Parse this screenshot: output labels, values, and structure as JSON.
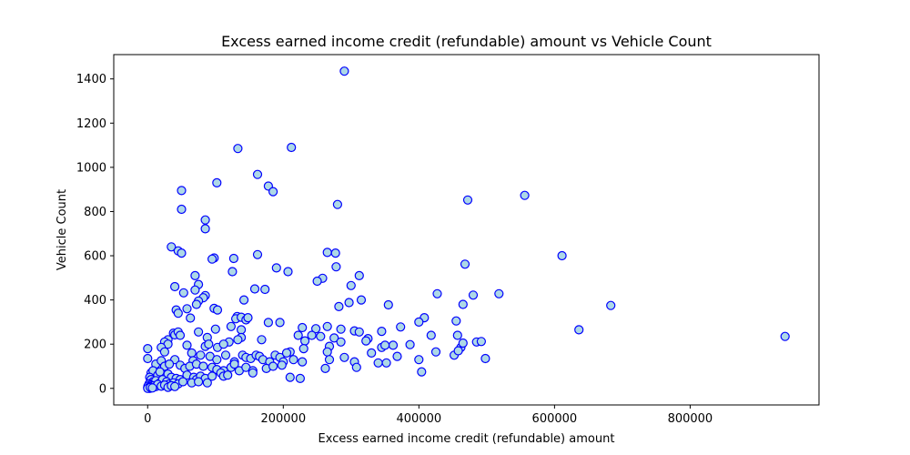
{
  "chart_data": {
    "type": "scatter",
    "title": "Excess earned income credit (refundable) amount vs Vehicle Count",
    "xlabel": "Excess earned income credit (refundable) amount",
    "ylabel": "Vehicle Count",
    "xlim": [
      -50000,
      990000
    ],
    "ylim": [
      -75,
      1510
    ],
    "xticks": [
      0,
      200000,
      400000,
      600000,
      800000
    ],
    "xtick_labels": [
      "0",
      "200000",
      "400000",
      "600000",
      "800000"
    ],
    "yticks": [
      0,
      200,
      400,
      600,
      800,
      1000,
      1200,
      1400
    ],
    "ytick_labels": [
      "0",
      "200",
      "400",
      "600",
      "800",
      "1000",
      "1200",
      "1400"
    ],
    "grid": false,
    "marker": {
      "fill": "#add8e6",
      "edge": "#0000ff"
    },
    "points": [
      [
        290000,
        1435
      ],
      [
        133000,
        1085
      ],
      [
        212000,
        1090
      ],
      [
        162000,
        968
      ],
      [
        102000,
        930
      ],
      [
        178000,
        915
      ],
      [
        185000,
        890
      ],
      [
        50000,
        895
      ],
      [
        280000,
        832
      ],
      [
        50000,
        810
      ],
      [
        472000,
        852
      ],
      [
        556000,
        873
      ],
      [
        85000,
        762
      ],
      [
        85000,
        722
      ],
      [
        611000,
        600
      ],
      [
        35000,
        640
      ],
      [
        45000,
        622
      ],
      [
        50000,
        612
      ],
      [
        98000,
        590
      ],
      [
        95000,
        585
      ],
      [
        127000,
        588
      ],
      [
        162000,
        605
      ],
      [
        265000,
        615
      ],
      [
        277000,
        612
      ],
      [
        190000,
        545
      ],
      [
        207000,
        528
      ],
      [
        125000,
        528
      ],
      [
        278000,
        550
      ],
      [
        70000,
        510
      ],
      [
        75000,
        470
      ],
      [
        258000,
        498
      ],
      [
        250000,
        485
      ],
      [
        312000,
        510
      ],
      [
        468000,
        562
      ],
      [
        40000,
        460
      ],
      [
        53000,
        432
      ],
      [
        70000,
        445
      ],
      [
        85000,
        420
      ],
      [
        82000,
        410
      ],
      [
        75000,
        395
      ],
      [
        72000,
        380
      ],
      [
        158000,
        450
      ],
      [
        173000,
        448
      ],
      [
        300000,
        465
      ],
      [
        142000,
        400
      ],
      [
        427000,
        428
      ],
      [
        518000,
        428
      ],
      [
        480000,
        422
      ],
      [
        42000,
        355
      ],
      [
        45000,
        340
      ],
      [
        58000,
        360
      ],
      [
        98000,
        362
      ],
      [
        103000,
        355
      ],
      [
        282000,
        370
      ],
      [
        297000,
        388
      ],
      [
        315000,
        400
      ],
      [
        355000,
        378
      ],
      [
        465000,
        380
      ],
      [
        683000,
        375
      ],
      [
        132000,
        325
      ],
      [
        130000,
        315
      ],
      [
        138000,
        322
      ],
      [
        145000,
        310
      ],
      [
        148000,
        320
      ],
      [
        63000,
        318
      ],
      [
        178000,
        298
      ],
      [
        195000,
        298
      ],
      [
        408000,
        320
      ],
      [
        400000,
        300
      ],
      [
        455000,
        305
      ],
      [
        373000,
        278
      ],
      [
        636000,
        265
      ],
      [
        38000,
        250
      ],
      [
        40000,
        242
      ],
      [
        45000,
        255
      ],
      [
        30000,
        220
      ],
      [
        48000,
        240
      ],
      [
        75000,
        255
      ],
      [
        88000,
        230
      ],
      [
        100000,
        268
      ],
      [
        123000,
        280
      ],
      [
        138000,
        265
      ],
      [
        138000,
        230
      ],
      [
        133000,
        220
      ],
      [
        120000,
        210
      ],
      [
        228000,
        275
      ],
      [
        248000,
        270
      ],
      [
        265000,
        280
      ],
      [
        285000,
        268
      ],
      [
        305000,
        260
      ],
      [
        222000,
        240
      ],
      [
        242000,
        240
      ],
      [
        255000,
        235
      ],
      [
        232000,
        215
      ],
      [
        275000,
        228
      ],
      [
        312000,
        255
      ],
      [
        325000,
        225
      ],
      [
        345000,
        258
      ],
      [
        418000,
        240
      ],
      [
        457000,
        240
      ],
      [
        25000,
        210
      ],
      [
        30000,
        200
      ],
      [
        58000,
        195
      ],
      [
        85000,
        190
      ],
      [
        90000,
        200
      ],
      [
        103000,
        185
      ],
      [
        112000,
        200
      ],
      [
        168000,
        220
      ],
      [
        210000,
        165
      ],
      [
        230000,
        180
      ],
      [
        268000,
        190
      ],
      [
        285000,
        210
      ],
      [
        322000,
        215
      ],
      [
        362000,
        195
      ],
      [
        387000,
        198
      ],
      [
        330000,
        160
      ],
      [
        345000,
        185
      ],
      [
        350000,
        195
      ],
      [
        425000,
        165
      ],
      [
        462000,
        185
      ],
      [
        465000,
        205
      ],
      [
        485000,
        210
      ],
      [
        492000,
        212
      ],
      [
        940000,
        235
      ],
      [
        0,
        180
      ],
      [
        20000,
        185
      ],
      [
        25000,
        165
      ],
      [
        40000,
        130
      ],
      [
        65000,
        160
      ],
      [
        67000,
        125
      ],
      [
        78000,
        150
      ],
      [
        92000,
        145
      ],
      [
        102000,
        130
      ],
      [
        115000,
        150
      ],
      [
        128000,
        120
      ],
      [
        140000,
        150
      ],
      [
        145000,
        140
      ],
      [
        152000,
        135
      ],
      [
        160000,
        150
      ],
      [
        165000,
        145
      ],
      [
        170000,
        130
      ],
      [
        180000,
        120
      ],
      [
        188000,
        150
      ],
      [
        195000,
        140
      ],
      [
        200000,
        120
      ],
      [
        205000,
        160
      ],
      [
        215000,
        130
      ],
      [
        228000,
        120
      ],
      [
        265000,
        165
      ],
      [
        268000,
        130
      ],
      [
        290000,
        140
      ],
      [
        305000,
        120
      ],
      [
        308000,
        95
      ],
      [
        340000,
        115
      ],
      [
        352000,
        115
      ],
      [
        368000,
        145
      ],
      [
        400000,
        130
      ],
      [
        404000,
        75
      ],
      [
        452000,
        150
      ],
      [
        458000,
        170
      ],
      [
        498000,
        135
      ],
      [
        0,
        135
      ],
      [
        12000,
        110
      ],
      [
        20000,
        125
      ],
      [
        25000,
        100
      ],
      [
        32000,
        110
      ],
      [
        48000,
        105
      ],
      [
        55000,
        90
      ],
      [
        62000,
        100
      ],
      [
        72000,
        110
      ],
      [
        82000,
        100
      ],
      [
        95000,
        95
      ],
      [
        102000,
        85
      ],
      [
        112000,
        80
      ],
      [
        123000,
        95
      ],
      [
        128000,
        110
      ],
      [
        135000,
        80
      ],
      [
        145000,
        95
      ],
      [
        155000,
        80
      ],
      [
        175000,
        90
      ],
      [
        185000,
        100
      ],
      [
        198000,
        105
      ],
      [
        210000,
        50
      ],
      [
        225000,
        45
      ],
      [
        262000,
        90
      ],
      [
        5000,
        70
      ],
      [
        8000,
        80
      ],
      [
        15000,
        60
      ],
      [
        18000,
        75
      ],
      [
        30000,
        65
      ],
      [
        35000,
        50
      ],
      [
        42000,
        45
      ],
      [
        48000,
        40
      ],
      [
        58000,
        60
      ],
      [
        68000,
        50
      ],
      [
        72000,
        40
      ],
      [
        78000,
        55
      ],
      [
        85000,
        45
      ],
      [
        95000,
        55
      ],
      [
        108000,
        70
      ],
      [
        112000,
        55
      ],
      [
        118000,
        60
      ],
      [
        155000,
        70
      ],
      [
        3000,
        50
      ],
      [
        5000,
        40
      ],
      [
        8000,
        30
      ],
      [
        12000,
        35
      ],
      [
        18000,
        25
      ],
      [
        22000,
        40
      ],
      [
        28000,
        30
      ],
      [
        32000,
        20
      ],
      [
        38000,
        25
      ],
      [
        45000,
        20
      ],
      [
        52000,
        30
      ],
      [
        65000,
        25
      ],
      [
        75000,
        30
      ],
      [
        88000,
        25
      ],
      [
        2000,
        20
      ],
      [
        4000,
        15
      ],
      [
        6000,
        10
      ],
      [
        9000,
        12
      ],
      [
        12000,
        8
      ],
      [
        15000,
        18
      ],
      [
        20000,
        10
      ],
      [
        25000,
        15
      ],
      [
        30000,
        5
      ],
      [
        35000,
        12
      ],
      [
        40000,
        8
      ],
      [
        0,
        5
      ],
      [
        1000,
        2
      ],
      [
        2000,
        8
      ],
      [
        3000,
        0
      ],
      [
        500,
        10
      ],
      [
        1500,
        3
      ],
      [
        2500,
        6
      ],
      [
        0,
        0
      ],
      [
        4000,
        4
      ],
      [
        7000,
        2
      ]
    ]
  }
}
